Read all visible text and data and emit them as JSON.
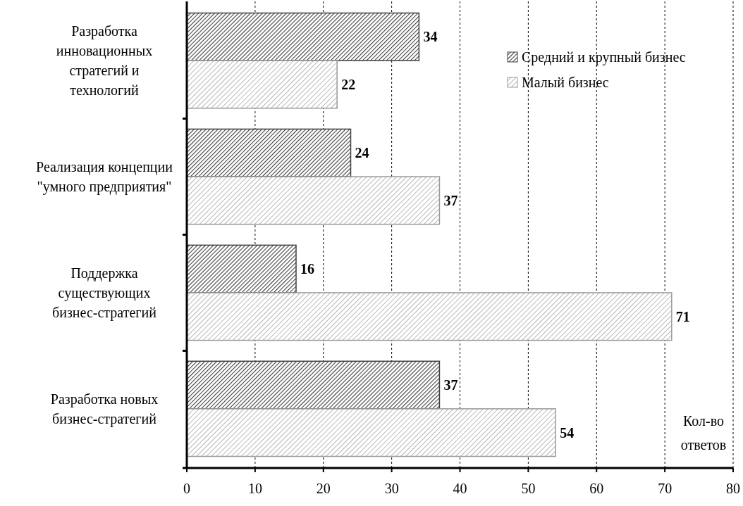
{
  "chart_data": {
    "type": "bar",
    "orientation": "horizontal",
    "xlabel": "Кол-во\nответов",
    "categories": [
      "Разработка\nинновационных\nстратегий и\nтехнологий",
      "Реализация концепции\n\"умного предприятия\"",
      "Поддержка\nсуществующих\nбизнес-стратегий",
      "Разработка новых\nбизнес-стратегий"
    ],
    "series": [
      {
        "name": "Средний и крупный бизнес",
        "color": "#404040",
        "values": [
          34,
          24,
          16,
          37
        ]
      },
      {
        "name": "Малый бизнес",
        "color": "#9a9a9a",
        "values": [
          22,
          37,
          71,
          54
        ]
      }
    ],
    "xlim": [
      0,
      80
    ],
    "xticks": [
      0,
      10,
      20,
      30,
      40,
      50,
      60,
      70,
      80
    ],
    "grid": "x",
    "legend": "top right",
    "data_labels": true
  }
}
